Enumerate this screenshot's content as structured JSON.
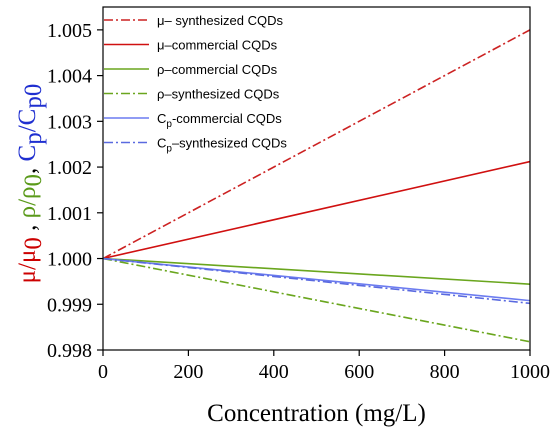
{
  "chart_data": {
    "type": "line",
    "xlabel": "Concentration (mg/L)",
    "ylabel_parts": [
      {
        "text": "μ/μ",
        "color": "#cc0000"
      },
      {
        "text": "0",
        "color": "#cc0000",
        "sub": true
      },
      {
        "text": " , ",
        "color": "#000000"
      },
      {
        "text": "ρ/ρ",
        "color": "#5a9a1a"
      },
      {
        "text": "0",
        "color": "#5a9a1a",
        "sub": true
      },
      {
        "text": ", ",
        "color": "#000000"
      },
      {
        "text": "C",
        "color": "#1f2fd0"
      },
      {
        "text": "p",
        "color": "#1f2fd0",
        "sub": true
      },
      {
        "text": "/C",
        "color": "#1f2fd0"
      },
      {
        "text": "p0",
        "color": "#1f2fd0",
        "sub": true
      }
    ],
    "xlim": [
      0,
      1000
    ],
    "ylim": [
      0.998,
      1.0055
    ],
    "xticks": [
      0,
      200,
      400,
      600,
      800,
      1000
    ],
    "yticks": [
      0.998,
      0.999,
      1.0,
      1.001,
      1.002,
      1.003,
      1.004,
      1.005
    ],
    "xtick_labels": [
      "0",
      "200",
      "400",
      "600",
      "800",
      "1000"
    ],
    "ytick_labels": [
      "0.998",
      "0.999",
      "1.000",
      "1.001",
      "1.002",
      "1.003",
      "1.004",
      "1.005"
    ],
    "grid": false,
    "legend_position": "top-left",
    "series": [
      {
        "label_main": "μ– synthesized CQDs",
        "label_sub": "",
        "label_rest": "",
        "color": "#cc2222",
        "dash": "dashdot",
        "x": [
          0,
          1000
        ],
        "y": [
          1.0,
          1.005
        ]
      },
      {
        "label_main": "μ–commercial CQDs",
        "label_sub": "",
        "label_rest": "",
        "color": "#d01010",
        "dash": "solid",
        "x": [
          0,
          1000
        ],
        "y": [
          1.0,
          1.00212
        ]
      },
      {
        "label_main": "ρ–commercial CQDs",
        "label_sub": "",
        "label_rest": "",
        "color": "#6aa61e",
        "dash": "solid",
        "x": [
          0,
          1000
        ],
        "y": [
          1.0,
          0.99944
        ]
      },
      {
        "label_main": "ρ–synthesized CQDs",
        "label_sub": "",
        "label_rest": "",
        "color": "#6aa61e",
        "dash": "dashdot",
        "x": [
          0,
          1000
        ],
        "y": [
          1.0,
          0.99818
        ]
      },
      {
        "label_main": "C",
        "label_sub": "p",
        "label_rest": "-commercial CQDs",
        "color": "#6c7cf0",
        "dash": "solid",
        "x": [
          0,
          1000
        ],
        "y": [
          1.0,
          0.99908
        ]
      },
      {
        "label_main": "C",
        "label_sub": "p",
        "label_rest": "–synthesized CQDs",
        "color": "#5a6ae0",
        "dash": "dashdot",
        "x": [
          0,
          1000
        ],
        "y": [
          1.0,
          0.99902
        ]
      }
    ]
  }
}
